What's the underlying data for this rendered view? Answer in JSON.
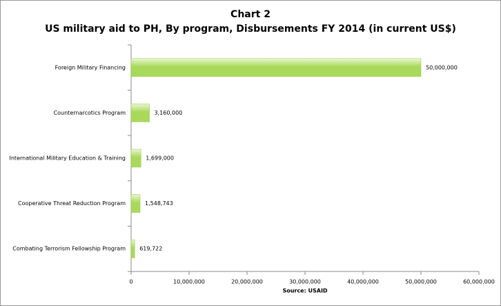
{
  "chart_data": {
    "type": "bar",
    "orientation": "horizontal",
    "title": "Chart 2",
    "subtitle": "US military aid to PH, By program, Disbursements FY 2014 (in current US$)",
    "xlabel": "Source: USAID",
    "categories": [
      "Foreign Military Financing",
      "Counternarcotics Program",
      "International Military Education & Training",
      "Cooperative Threat Reduction Program",
      "Combating Terrorism Fellowship Program"
    ],
    "values": [
      50000000,
      3160000,
      1699000,
      1548743,
      619722
    ],
    "value_labels": [
      "50,000,000",
      "3,160,000",
      "1,699,000",
      "1,548,743",
      "619,722"
    ],
    "color": "#a9d95a",
    "xlim": [
      0,
      60000000
    ],
    "xticks": [
      0,
      {
        "value": 10000000,
        "label": "10,000,000"
      },
      {
        "value": 20000000,
        "label": "20,000,000"
      },
      {
        "value": 30000000,
        "label": "30,000,000"
      },
      {
        "value": 40000000,
        "label": "40,000,000"
      },
      {
        "value": 50000000,
        "label": "50,000,000"
      },
      {
        "value": 60000000,
        "label": "60,000,000"
      }
    ],
    "grid": false
  }
}
